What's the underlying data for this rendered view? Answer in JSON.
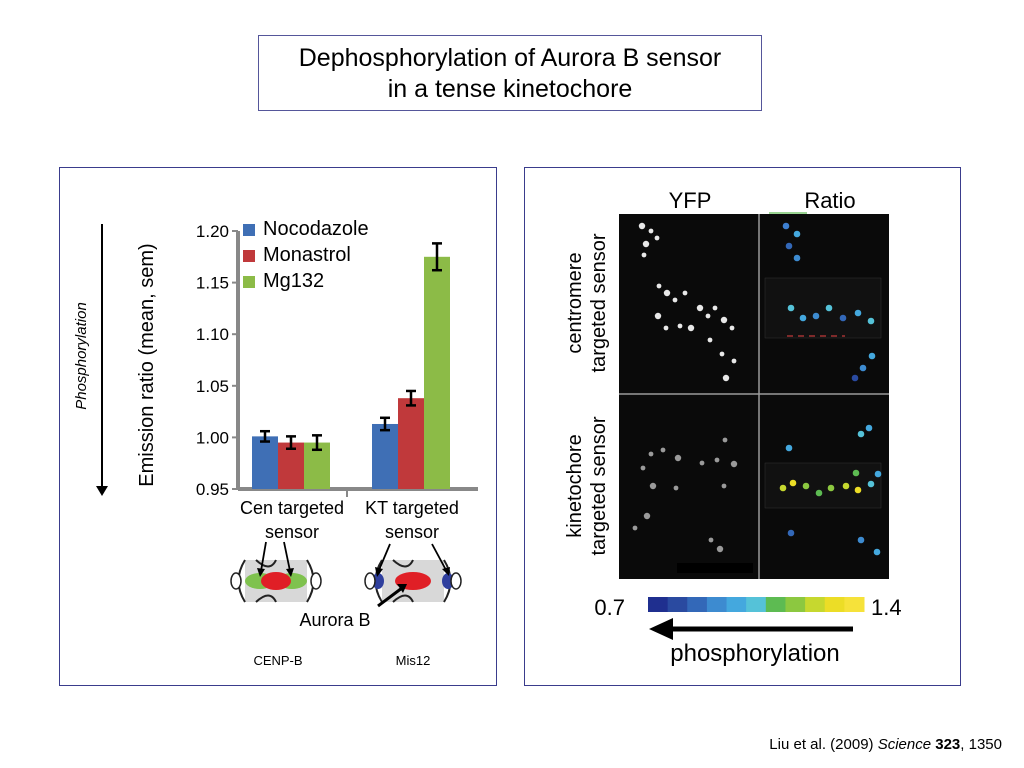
{
  "title": {
    "line1": "Dephosphorylation of Aurora B sensor",
    "line2": "in a tense kinetochore"
  },
  "left_panel": {
    "side_label": "Phosphorylation",
    "aurora_label": "Aurora B",
    "cenp_label": "CENP-B",
    "mis12_label": "Mis12"
  },
  "chart_data": {
    "type": "bar",
    "ylabel": "Emission ratio (mean, sem)",
    "ylim": [
      0.95,
      1.2
    ],
    "yticks": [
      "0.95",
      "1.00",
      "1.05",
      "1.10",
      "1.15",
      "1.20"
    ],
    "categories": [
      [
        "Cen targeted",
        "sensor"
      ],
      [
        "KT targeted",
        "sensor"
      ]
    ],
    "legend_position": "top-left",
    "series": [
      {
        "name": "Nocodazole",
        "color": "#3f6fb5",
        "values": [
          1.001,
          1.013
        ],
        "errors": [
          0.005,
          0.006
        ]
      },
      {
        "name": "Monastrol",
        "color": "#c0393b",
        "values": [
          0.995,
          1.038
        ],
        "errors": [
          0.006,
          0.007
        ]
      },
      {
        "name": "Mg132",
        "color": "#8cbb47",
        "values": [
          0.995,
          1.175
        ],
        "errors": [
          0.007,
          0.013
        ]
      }
    ]
  },
  "right_panel": {
    "col_yfp": "YFP",
    "col_ratio": "Ratio",
    "row_top": [
      "centromere",
      "targeted sensor"
    ],
    "row_bottom": [
      "kinetochore",
      "targeted sensor"
    ],
    "scale_min": "0.7",
    "scale_max": "1.4",
    "scale_colors": [
      "#1f2f8f",
      "#2a4aa0",
      "#3368b8",
      "#3d8bd0",
      "#44a8de",
      "#55c2d8",
      "#5dbb52",
      "#8cc840",
      "#c6d82f",
      "#ecdd26",
      "#f6e23a"
    ],
    "arrow_label": "phosphorylation"
  },
  "citation": {
    "authors": "Liu et al. (2009) ",
    "journal": "Science",
    "volume": "323",
    "page": ", 1350"
  }
}
